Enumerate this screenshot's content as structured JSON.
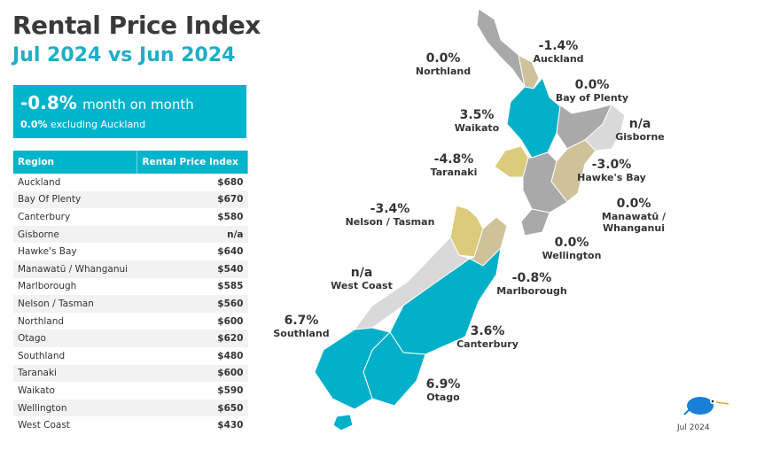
{
  "header": {
    "title": "Rental Price Index",
    "subtitle": "Jul 2024 vs Jun 2024"
  },
  "kpi": {
    "value": "-0.8%",
    "label": "month on month",
    "sub_value": "0.0%",
    "sub_label": "excluding Auckland"
  },
  "table": {
    "columns": [
      "Region",
      "Rental Price Index"
    ],
    "rows": [
      [
        "Auckland",
        "$680"
      ],
      [
        "Bay Of Plenty",
        "$670"
      ],
      [
        "Canterbury",
        "$580"
      ],
      [
        "Gisborne",
        "n/a"
      ],
      [
        "Hawke's Bay",
        "$640"
      ],
      [
        "Manawatū / Whanganui",
        "$540"
      ],
      [
        "Marlborough",
        "$585"
      ],
      [
        "Nelson / Tasman",
        "$560"
      ],
      [
        "Northland",
        "$600"
      ],
      [
        "Otago",
        "$620"
      ],
      [
        "Southland",
        "$480"
      ],
      [
        "Taranaki",
        "$600"
      ],
      [
        "Waikato",
        "$590"
      ],
      [
        "Wellington",
        "$650"
      ],
      [
        "West Coast",
        "$430"
      ]
    ]
  },
  "map": {
    "labels": [
      {
        "name": "Northland",
        "change": "0.0%"
      },
      {
        "name": "Auckland",
        "change": "-1.4%"
      },
      {
        "name": "Bay of Plenty",
        "change": "0.0%"
      },
      {
        "name": "Waikato",
        "change": "3.5%"
      },
      {
        "name": "Gisborne",
        "change": "n/a"
      },
      {
        "name": "Taranaki",
        "change": "-4.8%"
      },
      {
        "name": "Hawke's Bay",
        "change": "-3.0%"
      },
      {
        "name": "Manawatū / Whanganui",
        "change": "0.0%"
      },
      {
        "name": "Nelson / Tasman",
        "change": "-3.4%"
      },
      {
        "name": "Wellington",
        "change": "0.0%"
      },
      {
        "name": "West Coast",
        "change": "n/a"
      },
      {
        "name": "Marlborough",
        "change": "-0.8%"
      },
      {
        "name": "Southland",
        "change": "6.7%"
      },
      {
        "name": "Canterbury",
        "change": "3.6%"
      },
      {
        "name": "Otago",
        "change": "6.9%"
      }
    ],
    "colors": {
      "up": "#00b0c8",
      "zero": "#a9a9a9",
      "down_small": "#cfc29a",
      "down": "#dccb7a",
      "na": "#d9d9d9"
    }
  },
  "footer": {
    "date": "Jul 2024"
  }
}
